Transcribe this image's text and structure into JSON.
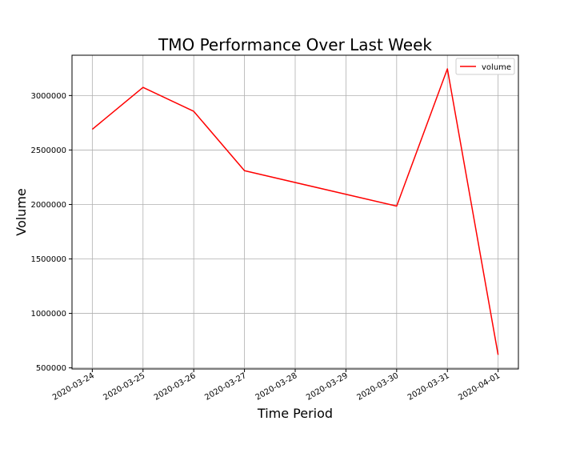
{
  "chart_data": {
    "type": "line",
    "title": "TMO Performance Over Last Week",
    "xlabel": "Time Period",
    "ylabel": "Volume",
    "x": [
      "2020-03-24",
      "2020-03-25",
      "2020-03-26",
      "2020-03-27",
      "2020-03-30",
      "2020-03-31",
      "2020-04-01"
    ],
    "x_ticks": [
      "2020-03-24",
      "2020-03-25",
      "2020-03-26",
      "2020-03-27",
      "2020-03-28",
      "2020-03-29",
      "2020-03-30",
      "2020-03-31",
      "2020-04-01"
    ],
    "y_ticks": [
      500000,
      1000000,
      1500000,
      2000000,
      2500000,
      3000000
    ],
    "series": [
      {
        "name": "volume",
        "color": "#ff0000",
        "values": [
          2690000,
          3075000,
          2855000,
          2310000,
          1985000,
          3245000,
          620000
        ]
      }
    ],
    "xlim": [
      "2020-03-23.6",
      "2020-04-01.4"
    ],
    "ylim": [
      490000,
      3370000
    ],
    "grid": true,
    "legend_position": "top-right"
  }
}
